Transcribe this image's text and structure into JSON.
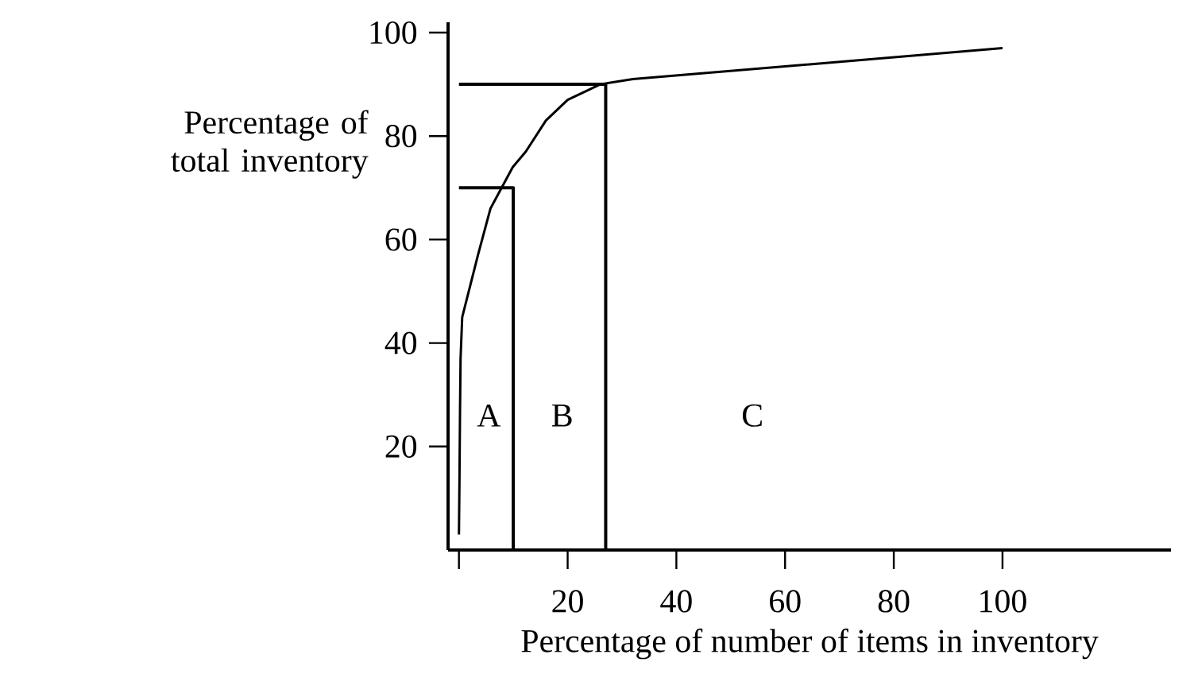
{
  "chart_data": {
    "type": "line",
    "xlabel": "Percentage of number of items in inventory",
    "ylabel": "Percentage of total inventory",
    "xlim": [
      -2,
      131
    ],
    "ylim": [
      0,
      102
    ],
    "xticks": [
      {
        "value": 0,
        "label": null
      },
      20,
      40,
      60,
      80,
      100
    ],
    "yticks": [
      20,
      40,
      60,
      80,
      100
    ],
    "marker": "none",
    "line_style": "solid",
    "series": [
      {
        "color": "#000000",
        "x": [
          0,
          0.1,
          0.2,
          0.3,
          0.6,
          3.5,
          5.8,
          9.9,
          12.3,
          16,
          20,
          26,
          32,
          100
        ],
        "values": [
          3,
          14,
          27,
          37,
          45,
          57,
          66,
          74,
          77,
          83,
          87,
          90,
          91,
          97
        ]
      },
      {
        "color": "#000000",
        "x": [
          0,
          10,
          10
        ],
        "values": [
          70,
          70,
          0
        ]
      },
      {
        "color": "#000000",
        "x": [
          0,
          27,
          27
        ],
        "values": [
          90,
          90,
          0
        ]
      }
    ],
    "annotations": [
      "A",
      "B",
      "C"
    ]
  }
}
